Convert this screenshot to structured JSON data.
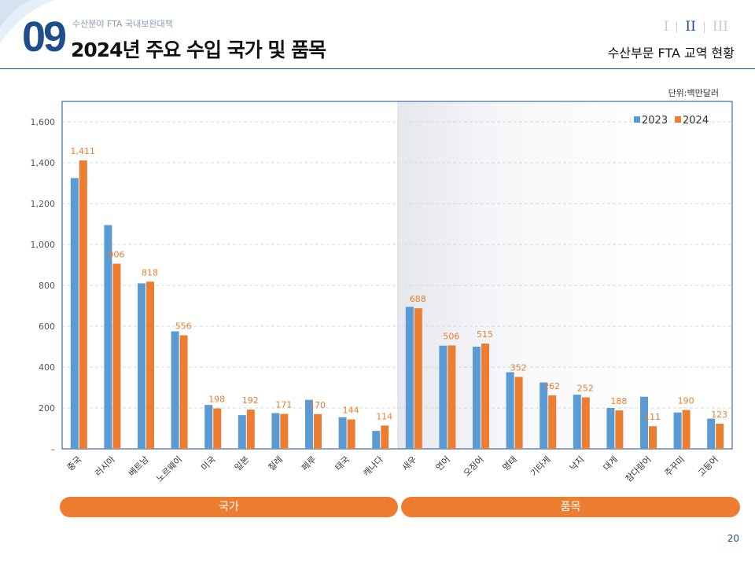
{
  "header": {
    "chapter_number": "09",
    "subtitle": "수산분야 FTA 국내보완대책",
    "title": "2024년 주요 수입 국가 및 품목",
    "nav": [
      "I",
      "II",
      "III"
    ],
    "nav_active": 1,
    "section": "수산부문 FTA 교역 현황"
  },
  "unit": "단위:백만달러",
  "groups": [
    {
      "label": "국가",
      "from": 0,
      "to": 9
    },
    {
      "label": "품목",
      "from": 10,
      "to": 19
    }
  ],
  "page_number": "20",
  "colors": {
    "brand": "#1f4e8c",
    "series_2023": "#5b9bd5",
    "series_2024": "#ed7d31"
  },
  "chart_data": {
    "type": "bar",
    "title": "",
    "xlabel": "",
    "ylabel": "",
    "ylim": [
      0,
      1700
    ],
    "yticks": [
      0,
      200,
      400,
      600,
      800,
      1000,
      1200,
      1400,
      1600
    ],
    "ytick_labels": [
      "–",
      "200",
      "400",
      "600",
      "800",
      "1,000",
      "1,200",
      "1,400",
      "1,600"
    ],
    "grid": true,
    "legend": "top-right",
    "highlight_from_index": 10,
    "categories": [
      "중국",
      "러시아",
      "베트남",
      "노르웨이",
      "미국",
      "일본",
      "칠레",
      "페루",
      "태국",
      "캐나다",
      "새우",
      "연어",
      "오징어",
      "명태",
      "기타게",
      "낙지",
      "대게",
      "참다랑어",
      "주꾸미",
      "고등어"
    ],
    "series": [
      {
        "name": "2023",
        "values": [
          1325,
          1095,
          810,
          575,
          215,
          165,
          175,
          240,
          155,
          88,
          695,
          505,
          500,
          375,
          325,
          265,
          200,
          255,
          178,
          148
        ]
      },
      {
        "name": "2024",
        "values": [
          1411,
          906,
          818,
          556,
          198,
          192,
          171,
          170,
          144,
          114,
          688,
          506,
          515,
          352,
          262,
          252,
          188,
          111,
          190,
          123
        ],
        "labels": [
          "1,411",
          "906",
          "818",
          "556",
          "198",
          "192",
          "171",
          "170",
          "144",
          "114",
          "688",
          "506",
          "515",
          "352",
          "262",
          "252",
          "188",
          "111",
          "190",
          "123"
        ]
      }
    ]
  }
}
